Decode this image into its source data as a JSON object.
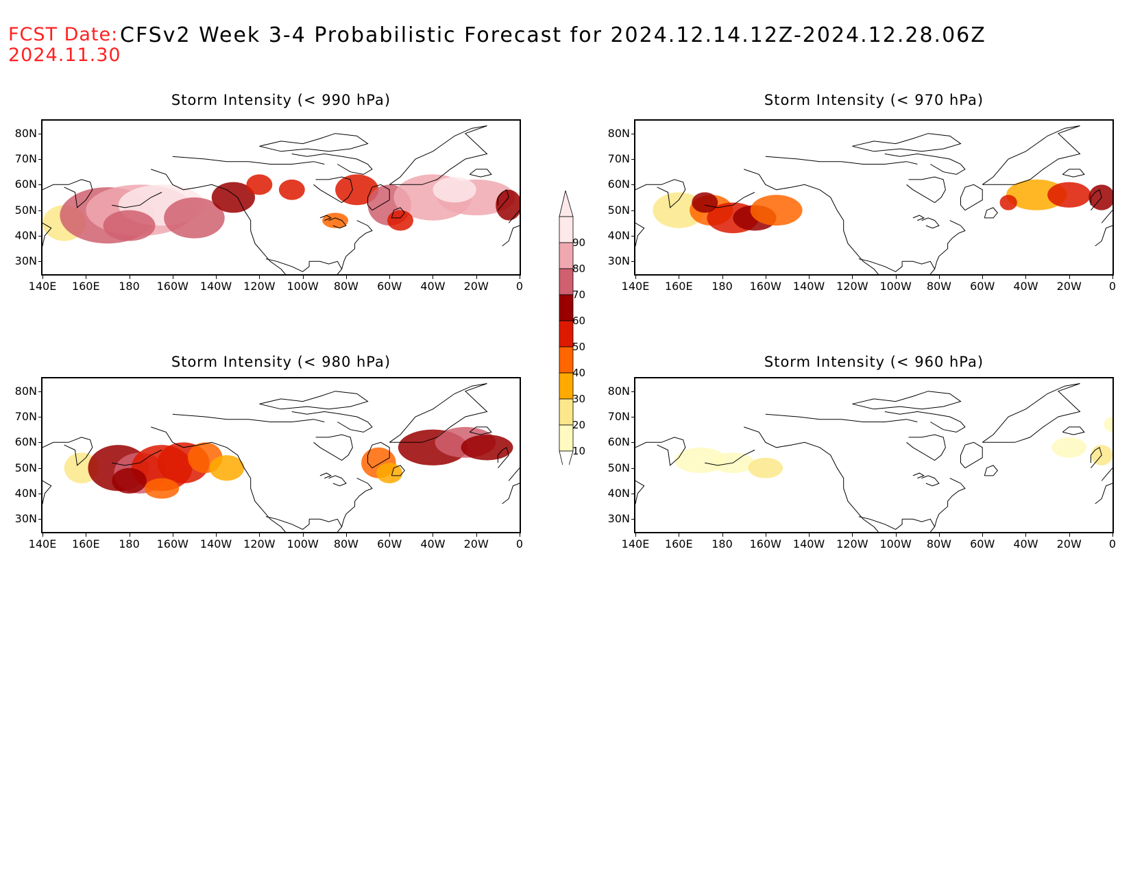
{
  "header": {
    "fcst_label": "FCST Date:",
    "fcst_date": "2024.11.30",
    "title": "CFSv2 Week 3-4 Probabilistic Forecast for 2024.12.14.12Z-2024.12.28.06Z"
  },
  "axes": {
    "lat_labels": [
      "80N",
      "70N",
      "60N",
      "50N",
      "40N",
      "30N"
    ],
    "lon_labels": [
      "140E",
      "160E",
      "180",
      "160W",
      "140W",
      "120W",
      "100W",
      "80W",
      "60W",
      "40W",
      "20W",
      "0"
    ]
  },
  "panels": [
    {
      "title": "Storm Intensity (< 990 hPa)",
      "level": "990"
    },
    {
      "title": "Storm Intensity (< 970 hPa)",
      "level": "970"
    },
    {
      "title": "Storm Intensity (< 980 hPa)",
      "level": "980"
    },
    {
      "title": "Storm Intensity (< 960 hPa)",
      "level": "960"
    }
  ],
  "colorbar": {
    "labels": [
      "90",
      "80",
      "70",
      "60",
      "50",
      "40",
      "30",
      "20",
      "10"
    ],
    "colors": [
      "#fde8ea",
      "#f0a8b0",
      "#d06070",
      "#9a0000",
      "#dd1a00",
      "#ff6600",
      "#ffaa00",
      "#fce88a",
      "#fffac0"
    ]
  }
}
